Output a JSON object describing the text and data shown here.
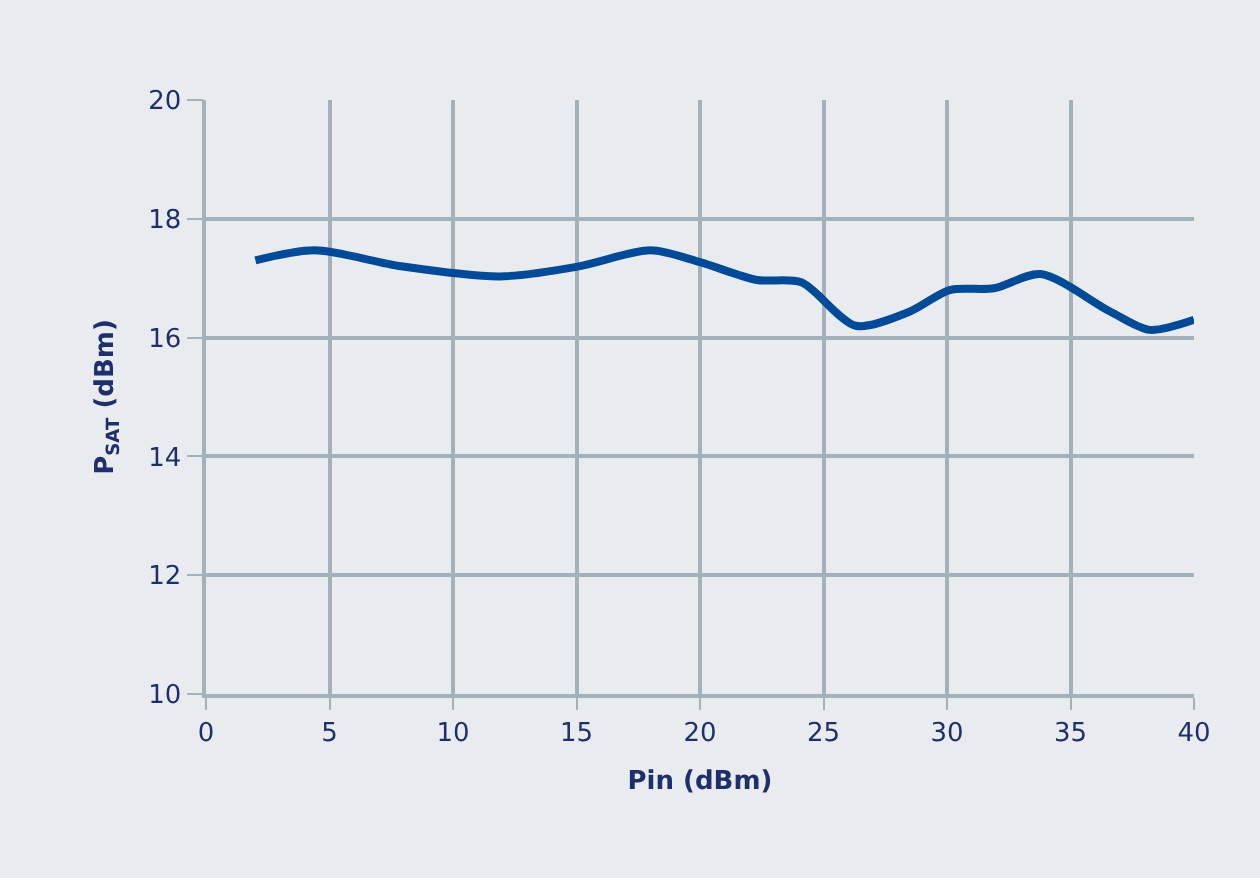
{
  "chart_data": {
    "type": "line",
    "xlabel": "Pin (dBm)",
    "ylabel": "P$_{SAT}$ (dBm)",
    "x": [
      2.0,
      4.4,
      7.9,
      11.9,
      15.1,
      18.0,
      20.0,
      22.3,
      24.1,
      26.3,
      28.5,
      30.1,
      31.9,
      33.8,
      36.6,
      38.2,
      40
    ],
    "series": [
      {
        "color": "#004a98",
        "values": [
          17.3,
          17.47,
          17.2,
          17.03,
          17.2,
          17.47,
          17.27,
          16.97,
          16.93,
          16.2,
          16.44,
          16.8,
          16.83,
          17.07,
          16.44,
          16.13,
          16.3
        ]
      }
    ],
    "xlim": [
      0,
      40
    ],
    "xticks": [
      0,
      5,
      10,
      15,
      20,
      25,
      30,
      35,
      40
    ],
    "ylim": [
      10,
      20
    ],
    "yticks": [
      10,
      12,
      14,
      16,
      18,
      20
    ],
    "grid": true,
    "legend": false,
    "marker": "none",
    "line_style": "solid"
  }
}
